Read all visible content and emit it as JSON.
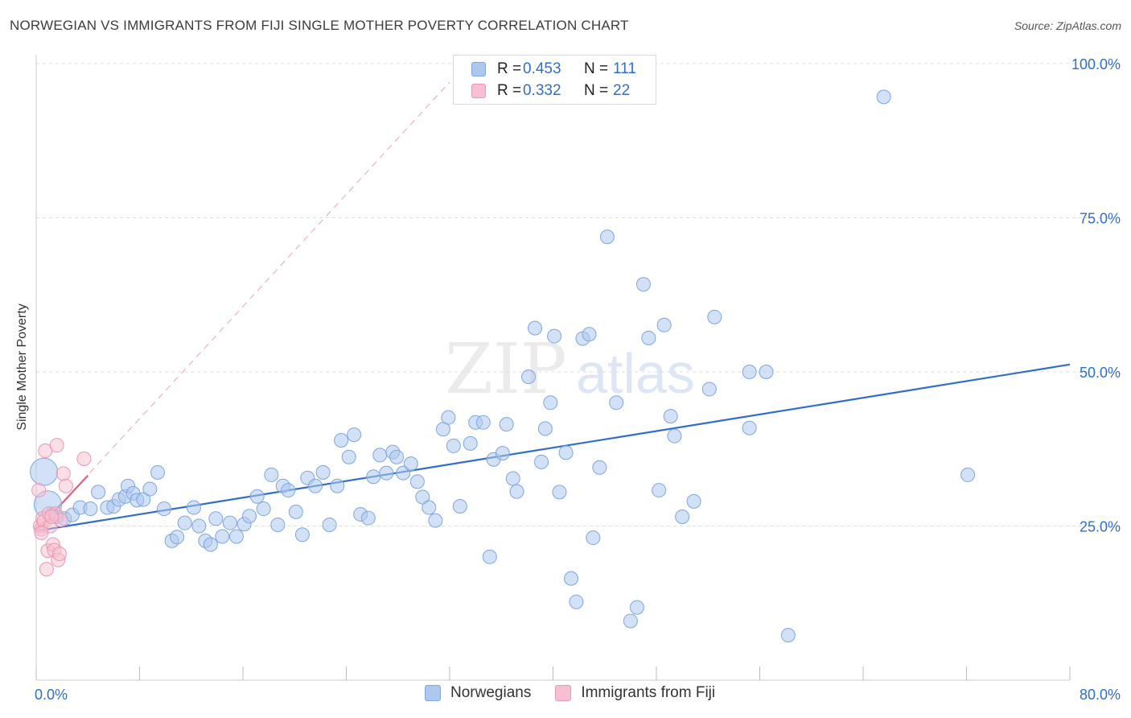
{
  "header": {
    "title": "NORWEGIAN VS IMMIGRANTS FROM FIJI SINGLE MOTHER POVERTY CORRELATION CHART",
    "source": "Source: ZipAtlas.com"
  },
  "watermark": {
    "zip": "ZIP",
    "atlas": "atlas"
  },
  "legend_top": {
    "rows": [
      {
        "r_label": "R =",
        "r_value": "0.453",
        "n_label": "N =",
        "n_value": "111"
      },
      {
        "r_label": "R =",
        "r_value": "0.332",
        "n_label": "N =",
        "n_value": "22"
      }
    ]
  },
  "legend_bottom": {
    "items": [
      "Norwegians",
      "Immigrants from Fiji"
    ]
  },
  "colors": {
    "blue_fill": "#adc8ef",
    "blue_stroke": "#7ea6e0",
    "blue_line": "#2f6fcb",
    "pink_fill": "#f7c0d0",
    "pink_stroke": "#ee96b2",
    "pink_line": "#e0607e",
    "axis_text": "#2f6fcb",
    "grid": "#dddddd"
  },
  "chart_data": {
    "type": "scatter",
    "title": "NORWEGIAN VS IMMIGRANTS FROM FIJI SINGLE MOTHER POVERTY CORRELATION CHART",
    "xlabel": "",
    "ylabel": "Single Mother Poverty",
    "xlim": [
      0,
      80
    ],
    "ylim": [
      0,
      105
    ],
    "x_tick_labels": [
      "0.0%",
      "80.0%"
    ],
    "y_ticks": [
      25,
      50,
      75,
      100
    ],
    "y_tick_labels": [
      "25.0%",
      "50.0%",
      "75.0%",
      "100.0%"
    ],
    "grid": true,
    "series": [
      {
        "name": "Norwegians",
        "r": 0.453,
        "n": 111,
        "trend": {
          "x0": 0,
          "y0": 24.2,
          "x1": 80,
          "y1": 51.2
        },
        "points": [
          {
            "x": 0.6,
            "y": 33.8,
            "size": "large"
          },
          {
            "x": 0.9,
            "y": 28.5,
            "size": "large"
          },
          {
            "x": 1.2,
            "y": 26.8
          },
          {
            "x": 1.6,
            "y": 26.5
          },
          {
            "x": 2.2,
            "y": 26.2
          },
          {
            "x": 2.8,
            "y": 26.8
          },
          {
            "x": 3.4,
            "y": 28
          },
          {
            "x": 4.2,
            "y": 27.8
          },
          {
            "x": 4.8,
            "y": 30.5
          },
          {
            "x": 5.5,
            "y": 28
          },
          {
            "x": 6,
            "y": 28.2
          },
          {
            "x": 6.4,
            "y": 29.3
          },
          {
            "x": 6.9,
            "y": 29.8
          },
          {
            "x": 7.1,
            "y": 31.5
          },
          {
            "x": 7.5,
            "y": 30.3
          },
          {
            "x": 7.8,
            "y": 29.2
          },
          {
            "x": 8.3,
            "y": 29.3
          },
          {
            "x": 8.8,
            "y": 31
          },
          {
            "x": 9.4,
            "y": 33.7
          },
          {
            "x": 9.9,
            "y": 27.8
          },
          {
            "x": 10.5,
            "y": 22.6
          },
          {
            "x": 10.9,
            "y": 23.2
          },
          {
            "x": 11.5,
            "y": 25.5
          },
          {
            "x": 12.2,
            "y": 28
          },
          {
            "x": 12.6,
            "y": 25
          },
          {
            "x": 13.1,
            "y": 22.6
          },
          {
            "x": 13.5,
            "y": 22
          },
          {
            "x": 13.9,
            "y": 26.2
          },
          {
            "x": 14.4,
            "y": 23.3
          },
          {
            "x": 15,
            "y": 25.5
          },
          {
            "x": 15.5,
            "y": 23.3
          },
          {
            "x": 16.1,
            "y": 25.3
          },
          {
            "x": 16.5,
            "y": 26.6
          },
          {
            "x": 17.1,
            "y": 29.8
          },
          {
            "x": 17.6,
            "y": 27.8
          },
          {
            "x": 18.2,
            "y": 33.3
          },
          {
            "x": 18.7,
            "y": 25.2
          },
          {
            "x": 19.1,
            "y": 31.5
          },
          {
            "x": 19.5,
            "y": 30.8
          },
          {
            "x": 20.1,
            "y": 27.3
          },
          {
            "x": 20.6,
            "y": 23.6
          },
          {
            "x": 21,
            "y": 32.8
          },
          {
            "x": 21.6,
            "y": 31.5
          },
          {
            "x": 22.2,
            "y": 33.7
          },
          {
            "x": 22.7,
            "y": 25.2
          },
          {
            "x": 23.3,
            "y": 31.5
          },
          {
            "x": 23.6,
            "y": 38.9
          },
          {
            "x": 24.2,
            "y": 36.2
          },
          {
            "x": 24.6,
            "y": 39.8
          },
          {
            "x": 25.1,
            "y": 26.9
          },
          {
            "x": 25.7,
            "y": 26.3
          },
          {
            "x": 26.1,
            "y": 33
          },
          {
            "x": 26.6,
            "y": 36.5
          },
          {
            "x": 27.1,
            "y": 33.6
          },
          {
            "x": 27.6,
            "y": 37
          },
          {
            "x": 27.9,
            "y": 36.2
          },
          {
            "x": 28.4,
            "y": 33.6
          },
          {
            "x": 29,
            "y": 35.1
          },
          {
            "x": 29.5,
            "y": 32.2
          },
          {
            "x": 29.9,
            "y": 29.7
          },
          {
            "x": 30.4,
            "y": 28
          },
          {
            "x": 30.9,
            "y": 25.9
          },
          {
            "x": 31.5,
            "y": 40.7
          },
          {
            "x": 31.9,
            "y": 42.6
          },
          {
            "x": 32.3,
            "y": 38
          },
          {
            "x": 32.8,
            "y": 28.2
          },
          {
            "x": 33.6,
            "y": 38.4
          },
          {
            "x": 34,
            "y": 41.8
          },
          {
            "x": 34.6,
            "y": 41.8
          },
          {
            "x": 35.1,
            "y": 20
          },
          {
            "x": 35.4,
            "y": 35.8
          },
          {
            "x": 36.1,
            "y": 36.8
          },
          {
            "x": 36.4,
            "y": 41.5
          },
          {
            "x": 36.9,
            "y": 32.7
          },
          {
            "x": 37.2,
            "y": 30.6
          },
          {
            "x": 38.1,
            "y": 49.2
          },
          {
            "x": 38.6,
            "y": 57.1
          },
          {
            "x": 39.1,
            "y": 35.4
          },
          {
            "x": 39.4,
            "y": 40.8
          },
          {
            "x": 39.8,
            "y": 45
          },
          {
            "x": 40.1,
            "y": 55.8
          },
          {
            "x": 40.5,
            "y": 30.5
          },
          {
            "x": 41,
            "y": 36.9
          },
          {
            "x": 41.4,
            "y": 16.5
          },
          {
            "x": 41.8,
            "y": 12.7
          },
          {
            "x": 42.3,
            "y": 55.4
          },
          {
            "x": 42.8,
            "y": 56.1
          },
          {
            "x": 43.1,
            "y": 23.1
          },
          {
            "x": 43.6,
            "y": 34.5
          },
          {
            "x": 44.2,
            "y": 71.9
          },
          {
            "x": 44.9,
            "y": 45
          },
          {
            "x": 46,
            "y": 9.6
          },
          {
            "x": 46.5,
            "y": 11.8
          },
          {
            "x": 47,
            "y": 64.2
          },
          {
            "x": 47.4,
            "y": 55.5
          },
          {
            "x": 48.2,
            "y": 30.8
          },
          {
            "x": 48.6,
            "y": 57.6
          },
          {
            "x": 49.1,
            "y": 42.8
          },
          {
            "x": 49.4,
            "y": 39.6
          },
          {
            "x": 50,
            "y": 26.5
          },
          {
            "x": 50.9,
            "y": 29
          },
          {
            "x": 52.1,
            "y": 47.2
          },
          {
            "x": 52.5,
            "y": 58.9
          },
          {
            "x": 55.2,
            "y": 50
          },
          {
            "x": 55.2,
            "y": 40.9
          },
          {
            "x": 56.5,
            "y": 50
          },
          {
            "x": 58.2,
            "y": 7.3
          },
          {
            "x": 65.6,
            "y": 94.6
          },
          {
            "x": 72.1,
            "y": 33.3
          }
        ]
      },
      {
        "name": "Immigrants from Fiji",
        "r": 0.332,
        "n": 22,
        "trend": {
          "x0": 0,
          "y0": 24.2,
          "x1": 4.0,
          "y1": 33.2
        },
        "extension": {
          "x0": 0,
          "y0": 24.2,
          "x1": 32,
          "y1": 97
        },
        "points": [
          {
            "x": 0.2,
            "y": 30.8
          },
          {
            "x": 0.3,
            "y": 25
          },
          {
            "x": 0.4,
            "y": 24.5
          },
          {
            "x": 0.5,
            "y": 26.2
          },
          {
            "x": 0.6,
            "y": 25.8
          },
          {
            "x": 0.7,
            "y": 37.2
          },
          {
            "x": 0.8,
            "y": 18
          },
          {
            "x": 0.9,
            "y": 21
          },
          {
            "x": 1,
            "y": 27
          },
          {
            "x": 1.1,
            "y": 25
          },
          {
            "x": 1.3,
            "y": 22
          },
          {
            "x": 1.4,
            "y": 21.1
          },
          {
            "x": 1.5,
            "y": 27
          },
          {
            "x": 1.6,
            "y": 38.1
          },
          {
            "x": 1.7,
            "y": 19.5
          },
          {
            "x": 1.8,
            "y": 20.5
          },
          {
            "x": 1.9,
            "y": 26
          },
          {
            "x": 2.1,
            "y": 33.5
          },
          {
            "x": 2.3,
            "y": 31.5
          },
          {
            "x": 3.7,
            "y": 35.9
          },
          {
            "x": 1.2,
            "y": 26.5
          },
          {
            "x": 0.4,
            "y": 23.9
          }
        ]
      }
    ]
  }
}
